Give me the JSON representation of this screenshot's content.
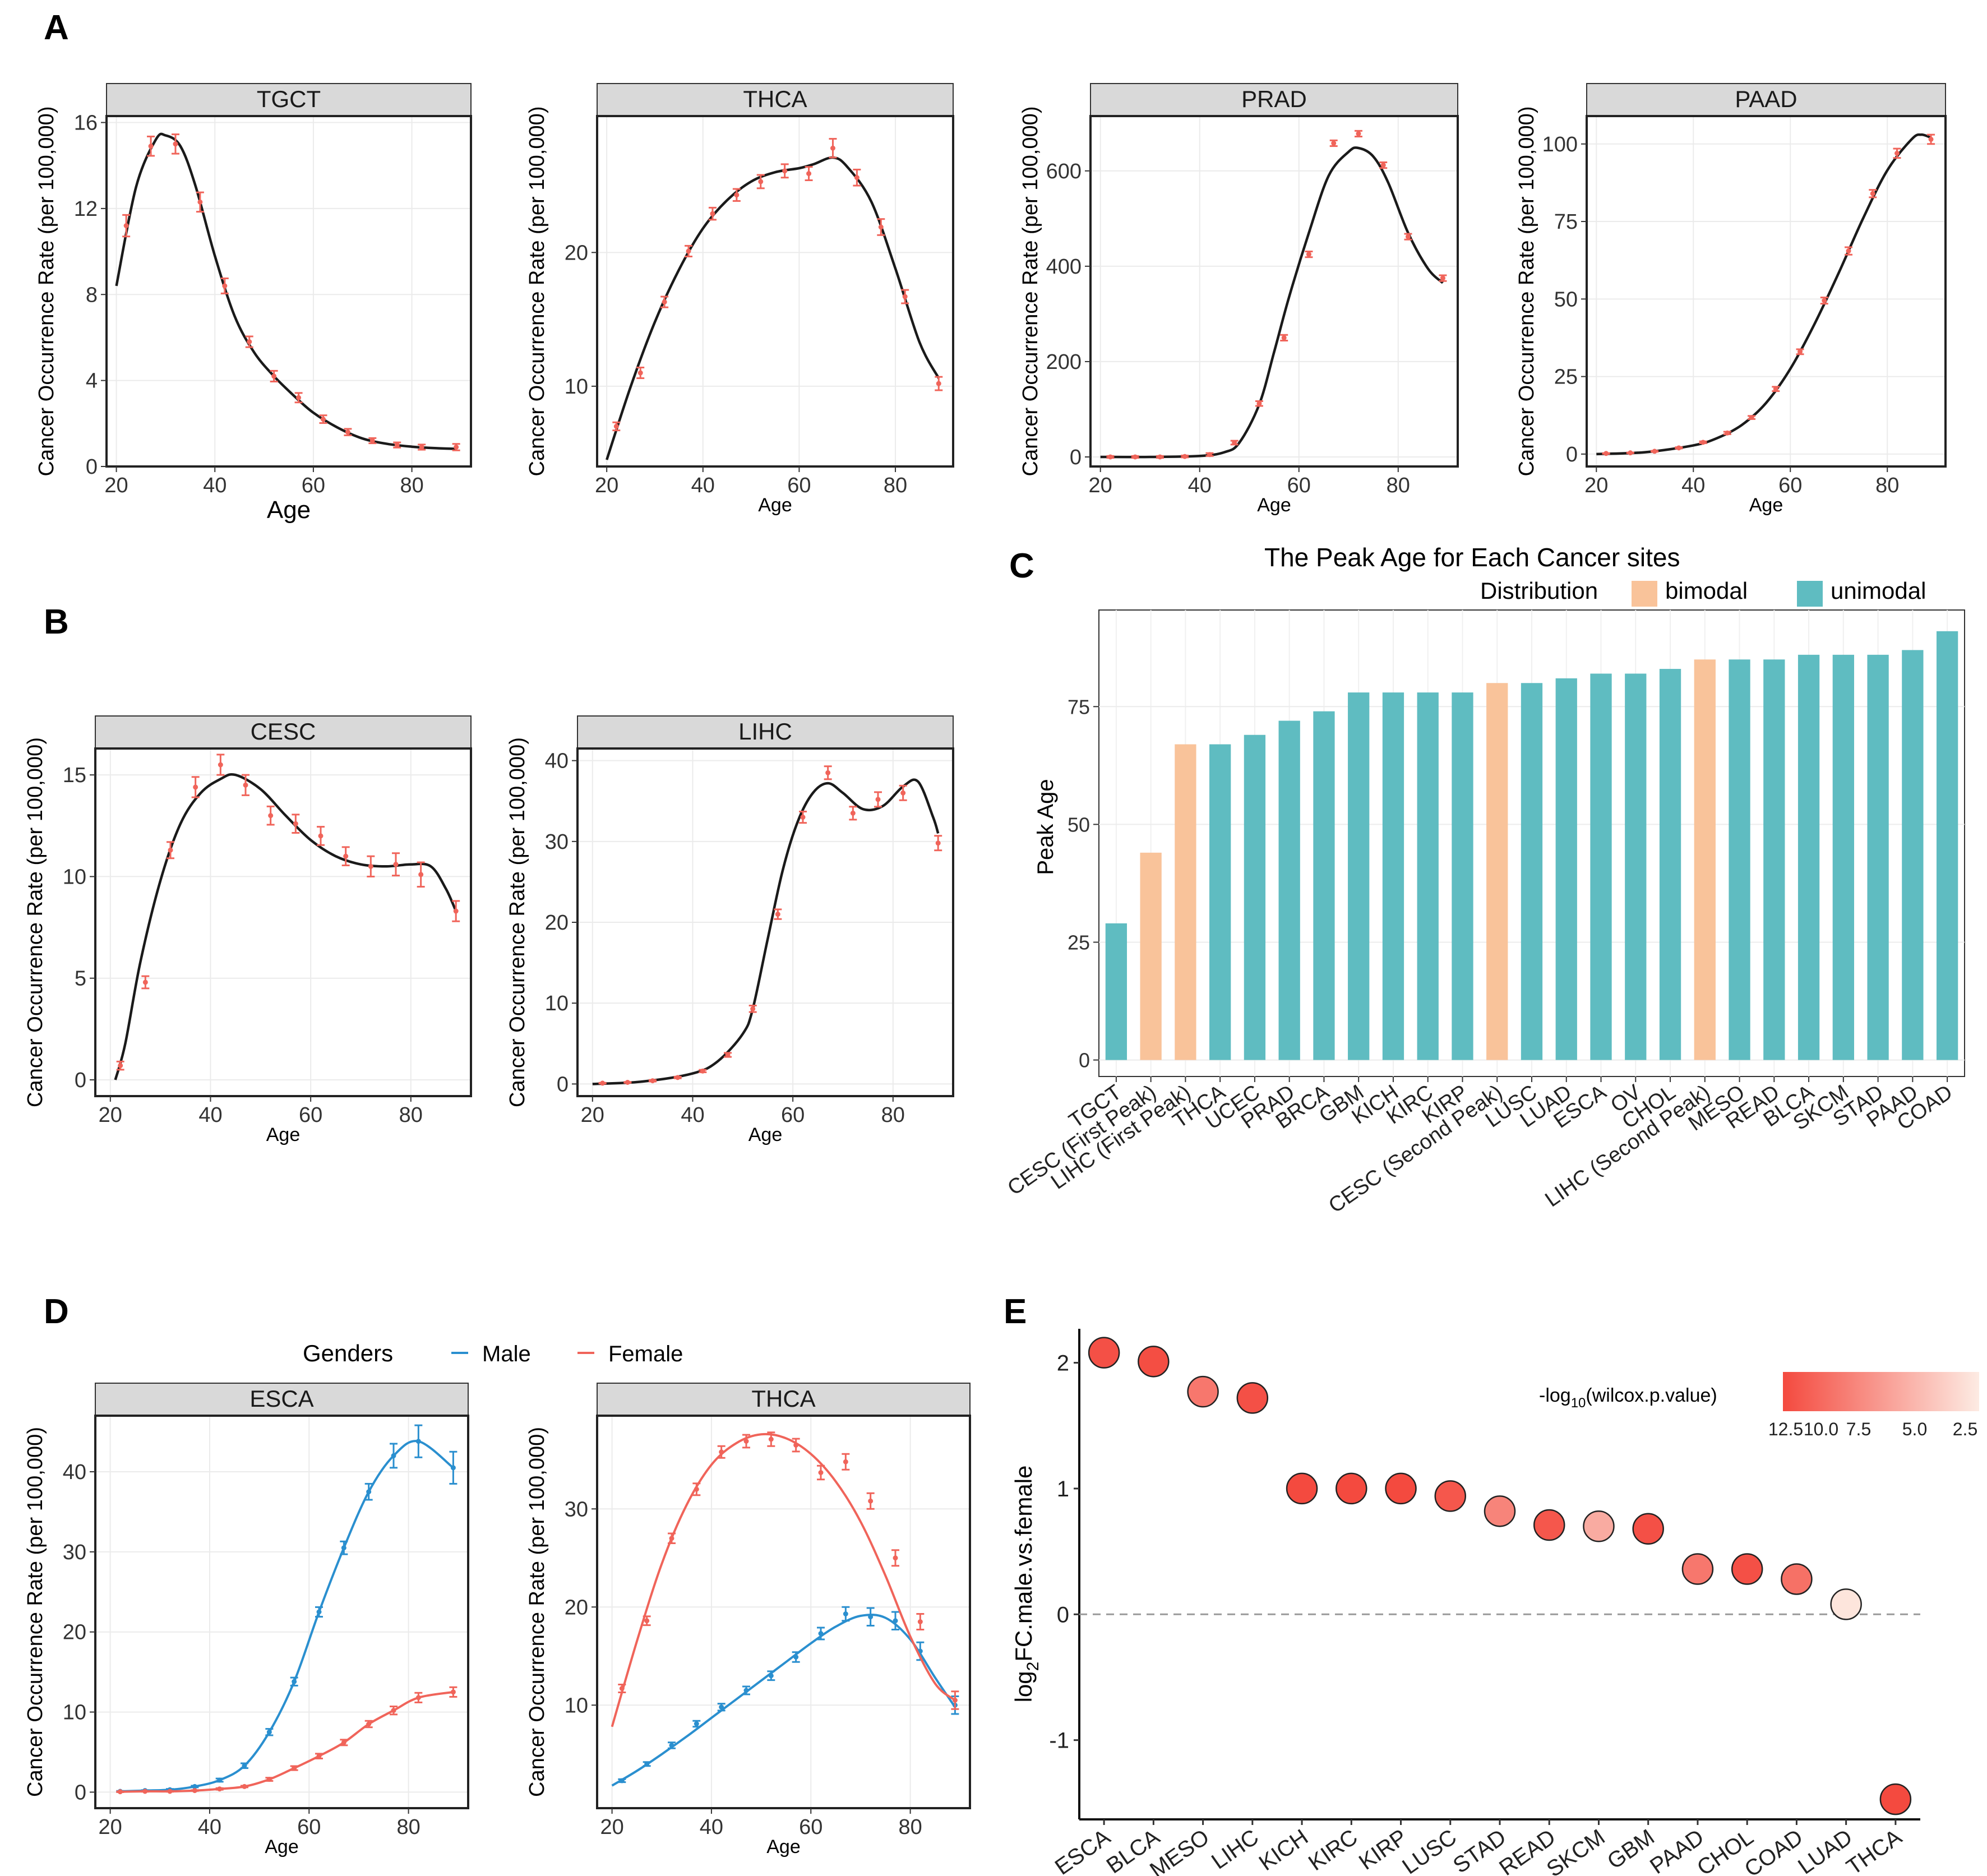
{
  "panel_letters": [
    "A",
    "B",
    "C",
    "D",
    "E"
  ],
  "facet_ylabel": "Cancer Occurrence Rate (per 100,000)",
  "age_label": "Age",
  "colors": {
    "point": "#f0645a",
    "curve": "#1a1a1a",
    "strip": "#d9d9d9",
    "male": "#2a8fcf",
    "female": "#f0645a",
    "bimodal": "#f9c39a",
    "unimodal": "#5fbcc1",
    "grid": "#ebebeb"
  },
  "chart_data": [
    {
      "id": "TGCT",
      "type": "scatter",
      "title": "TGCT",
      "xlabel": "Age",
      "ylabel": "Cancer Occurrence Rate (per 100,000)",
      "xlim": [
        18,
        92
      ],
      "ylim": [
        0,
        16.3
      ],
      "xticks": [
        20,
        40,
        60,
        80
      ],
      "yticks": [
        0,
        4,
        8,
        12,
        16
      ],
      "x": [
        22,
        27,
        32,
        37,
        42,
        47,
        52,
        57,
        62,
        67,
        72,
        77,
        82,
        89
      ],
      "values": [
        11.2,
        14.9,
        15.0,
        12.3,
        8.4,
        5.8,
        4.2,
        3.2,
        2.2,
        1.6,
        1.2,
        1.0,
        0.9,
        0.9
      ],
      "errors": [
        0.5,
        0.45,
        0.45,
        0.45,
        0.35,
        0.25,
        0.25,
        0.22,
        0.18,
        0.15,
        0.12,
        0.12,
        0.12,
        0.15
      ],
      "curve_x": [
        20,
        24,
        28,
        30,
        33,
        36,
        40,
        44,
        48,
        52,
        56,
        60,
        65,
        70,
        75,
        80,
        85,
        89
      ],
      "curve_y": [
        8.4,
        13.0,
        15.2,
        15.4,
        14.9,
        13.1,
        9.8,
        7.0,
        5.3,
        4.2,
        3.3,
        2.5,
        1.8,
        1.3,
        1.05,
        0.92,
        0.85,
        0.82
      ]
    },
    {
      "id": "THCA",
      "type": "scatter",
      "title": "THCA",
      "xlabel": "Age",
      "ylabel": "Cancer Occurrence Rate (per 100,000)",
      "xlim": [
        18,
        92
      ],
      "ylim": [
        4,
        30.2
      ],
      "xticks": [
        20,
        40,
        60,
        80
      ],
      "yticks": [
        10,
        20
      ],
      "x": [
        22,
        27,
        32,
        37,
        42,
        47,
        52,
        57,
        62,
        67,
        72,
        77,
        82,
        89
      ],
      "values": [
        7.0,
        11.0,
        16.3,
        20.1,
        22.9,
        24.3,
        25.3,
        26.1,
        25.9,
        27.8,
        25.6,
        21.9,
        16.7,
        10.2
      ],
      "errors": [
        0.3,
        0.4,
        0.4,
        0.4,
        0.45,
        0.45,
        0.5,
        0.5,
        0.5,
        0.7,
        0.6,
        0.6,
        0.5,
        0.5
      ],
      "curve_x": [
        20,
        25,
        30,
        35,
        40,
        45,
        50,
        55,
        60,
        63,
        67,
        70,
        75,
        80,
        85,
        89
      ],
      "curve_y": [
        4.5,
        10.0,
        14.8,
        18.7,
        21.8,
        23.9,
        25.3,
        26.0,
        26.3,
        26.6,
        27.1,
        26.4,
        23.8,
        18.8,
        13.3,
        10.6
      ]
    },
    {
      "id": "PRAD",
      "type": "scatter",
      "title": "PRAD",
      "xlabel": "Age",
      "ylabel": "Cancer Occurrence Rate (per 100,000)",
      "xlim": [
        18,
        92
      ],
      "ylim": [
        -20,
        715
      ],
      "xticks": [
        20,
        40,
        60,
        80
      ],
      "yticks": [
        0,
        200,
        400,
        600
      ],
      "x": [
        22,
        27,
        32,
        37,
        42,
        47,
        52,
        57,
        62,
        67,
        72,
        77,
        82,
        89
      ],
      "values": [
        0,
        0,
        0,
        1,
        5,
        30,
        112,
        250,
        425,
        658,
        678,
        612,
        462,
        375
      ],
      "errors": [
        2,
        2,
        2,
        2,
        3,
        4,
        5,
        6,
        6,
        6,
        6,
        6,
        6,
        6
      ],
      "curve_x": [
        20,
        30,
        40,
        45,
        48,
        52,
        55,
        58,
        62,
        66,
        70,
        72,
        75,
        78,
        82,
        86,
        89
      ],
      "curve_y": [
        0,
        0,
        2,
        10,
        30,
        110,
        220,
        335,
        470,
        590,
        640,
        648,
        630,
        575,
        470,
        395,
        365
      ]
    },
    {
      "id": "PAAD",
      "type": "scatter",
      "title": "PAAD",
      "xlabel": "Age",
      "ylabel": "Cancer Occurrence Rate (per 100,000)",
      "xlim": [
        18,
        92
      ],
      "ylim": [
        -4,
        109
      ],
      "xticks": [
        20,
        40,
        60,
        80
      ],
      "yticks": [
        0,
        25,
        50,
        75,
        100
      ],
      "x": [
        22,
        27,
        32,
        37,
        42,
        47,
        52,
        57,
        62,
        67,
        72,
        77,
        82,
        89
      ],
      "values": [
        0.2,
        0.4,
        0.9,
        2.0,
        3.8,
        6.8,
        11.8,
        21.0,
        33.0,
        49.5,
        65.5,
        84.0,
        97.0,
        101.5
      ],
      "errors": [
        0.1,
        0.1,
        0.15,
        0.2,
        0.3,
        0.4,
        0.5,
        0.7,
        0.8,
        1.0,
        1.2,
        1.2,
        1.5,
        1.5
      ],
      "curve_x": [
        20,
        30,
        40,
        45,
        50,
        55,
        60,
        65,
        70,
        75,
        80,
        85,
        87,
        89
      ],
      "curve_y": [
        0,
        0.6,
        2.8,
        5.2,
        9.4,
        16.5,
        27.5,
        42.0,
        58.5,
        76.0,
        91.5,
        101.5,
        103.0,
        102.0
      ]
    },
    {
      "id": "CESC",
      "type": "scatter",
      "title": "CESC",
      "xlabel": "Age",
      "ylabel": "Cancer Occurrence Rate (per 100,000)",
      "xlim": [
        17,
        92
      ],
      "ylim": [
        -0.8,
        16.3
      ],
      "xticks": [
        20,
        40,
        60,
        80
      ],
      "yticks": [
        0,
        5,
        10,
        15
      ],
      "x": [
        22,
        27,
        32,
        37,
        42,
        47,
        52,
        57,
        62,
        67,
        72,
        77,
        82,
        89
      ],
      "values": [
        0.7,
        4.8,
        11.3,
        14.4,
        15.5,
        14.5,
        13.0,
        12.6,
        12.0,
        11.0,
        10.5,
        10.6,
        10.1,
        8.3
      ],
      "errors": [
        0.2,
        0.3,
        0.4,
        0.5,
        0.5,
        0.5,
        0.45,
        0.45,
        0.45,
        0.45,
        0.5,
        0.55,
        0.6,
        0.5
      ],
      "curve_x": [
        21,
        23,
        26,
        30,
        34,
        38,
        42,
        45,
        50,
        55,
        60,
        65,
        70,
        75,
        80,
        84,
        87,
        89
      ],
      "curve_y": [
        0,
        1.8,
        5.8,
        9.8,
        12.6,
        14.1,
        14.8,
        15.0,
        14.3,
        13.0,
        11.8,
        11.0,
        10.6,
        10.5,
        10.6,
        10.5,
        9.4,
        8.3
      ]
    },
    {
      "id": "LIHC",
      "type": "scatter",
      "title": "LIHC",
      "xlabel": "Age",
      "ylabel": "Cancer Occurrence Rate (per 100,000)",
      "xlim": [
        17,
        92
      ],
      "ylim": [
        -1.5,
        41.5
      ],
      "xticks": [
        20,
        40,
        60,
        80
      ],
      "yticks": [
        0,
        10,
        20,
        30,
        40
      ],
      "x": [
        22,
        27,
        32,
        37,
        42,
        47,
        52,
        57,
        62,
        67,
        72,
        77,
        82,
        89
      ],
      "values": [
        0.1,
        0.2,
        0.4,
        0.8,
        1.6,
        3.6,
        9.3,
        21.0,
        33.0,
        38.5,
        33.5,
        35.2,
        36.0,
        29.8
      ],
      "errors": [
        0.05,
        0.05,
        0.1,
        0.1,
        0.15,
        0.25,
        0.4,
        0.6,
        0.7,
        0.8,
        0.8,
        0.9,
        0.9,
        0.9
      ],
      "curve_x": [
        20,
        30,
        40,
        45,
        50,
        52,
        55,
        58,
        61,
        64,
        67,
        70,
        74,
        78,
        82,
        85,
        88,
        89
      ],
      "curve_y": [
        0,
        0.3,
        1.3,
        2.8,
        6.2,
        9.3,
        18.0,
        26.5,
        32.5,
        36.0,
        37.2,
        36.0,
        34.0,
        34.4,
        36.8,
        37.4,
        33.0,
        31.0
      ]
    },
    {
      "id": "PEAK",
      "type": "bar",
      "title": "The Peak Age for Each Cancer sites",
      "xlabel": "",
      "ylabel": "Peak Age",
      "ylim": [
        -3.5,
        95.5
      ],
      "yticks": [
        0,
        25,
        50,
        75
      ],
      "legend_title": "Distribution",
      "legend": [
        "bimodal",
        "unimodal"
      ],
      "categories": [
        "TGCT",
        "CESC (First Peak)",
        "LIHC (First Peak)",
        "THCA",
        "UCEC",
        "PRAD",
        "BRCA",
        "GBM",
        "KICH",
        "KIRC",
        "KIRP",
        "CESC (Second Peak)",
        "LUSC",
        "LUAD",
        "ESCA",
        "OV",
        "CHOL",
        "LIHC (Second Peak)",
        "MESO",
        "READ",
        "BLCA",
        "SKCM",
        "STAD",
        "PAAD",
        "COAD"
      ],
      "values": [
        29,
        44,
        67,
        67,
        69,
        72,
        74,
        78,
        78,
        78,
        78,
        80,
        80,
        81,
        82,
        82,
        83,
        85,
        85,
        85,
        86,
        86,
        86,
        87,
        91
      ],
      "groups": [
        "unimodal",
        "bimodal",
        "bimodal",
        "unimodal",
        "unimodal",
        "unimodal",
        "unimodal",
        "unimodal",
        "unimodal",
        "unimodal",
        "unimodal",
        "bimodal",
        "unimodal",
        "unimodal",
        "unimodal",
        "unimodal",
        "unimodal",
        "bimodal",
        "unimodal",
        "unimodal",
        "unimodal",
        "unimodal",
        "unimodal",
        "unimodal",
        "unimodal"
      ]
    },
    {
      "id": "ESCA",
      "type": "line",
      "title": "ESCA",
      "xlabel": "Age",
      "ylabel": "Cancer Occurrence Rate (per 100,000)",
      "xlim": [
        17,
        92
      ],
      "ylim": [
        -2,
        47
      ],
      "xticks": [
        20,
        40,
        60,
        80
      ],
      "yticks": [
        0,
        10,
        20,
        30,
        40
      ],
      "legend_title": "Genders",
      "legend": [
        "Male",
        "Female"
      ],
      "x": [
        22,
        27,
        32,
        37,
        42,
        47,
        52,
        57,
        62,
        67,
        72,
        77,
        82,
        89
      ],
      "series": [
        {
          "name": "Male",
          "values": [
            0.1,
            0.2,
            0.3,
            0.7,
            1.5,
            3.3,
            7.5,
            13.8,
            22.5,
            30.5,
            37.5,
            42.0,
            43.8,
            40.5
          ],
          "errors": [
            0.05,
            0.05,
            0.1,
            0.1,
            0.2,
            0.3,
            0.4,
            0.5,
            0.6,
            0.8,
            1.0,
            1.5,
            2.0,
            2.0
          ]
        },
        {
          "name": "Female",
          "values": [
            0.05,
            0.1,
            0.1,
            0.2,
            0.4,
            0.7,
            1.6,
            3.0,
            4.5,
            6.2,
            8.5,
            10.2,
            11.8,
            12.5
          ],
          "errors": [
            0.05,
            0.05,
            0.05,
            0.05,
            0.1,
            0.1,
            0.2,
            0.25,
            0.3,
            0.35,
            0.4,
            0.5,
            0.6,
            0.6
          ]
        }
      ]
    },
    {
      "id": "THCA2",
      "type": "line",
      "title": "THCA",
      "xlabel": "Age",
      "ylabel": "Cancer Occurrence Rate (per 100,000)",
      "xlim": [
        17,
        92
      ],
      "ylim": [
        -0.5,
        39.5
      ],
      "xticks": [
        20,
        40,
        60,
        80
      ],
      "yticks": [
        10,
        20,
        30
      ],
      "x": [
        22,
        27,
        32,
        37,
        42,
        47,
        52,
        57,
        62,
        67,
        72,
        77,
        82,
        89
      ],
      "series": [
        {
          "name": "Male",
          "values": [
            2.3,
            4.0,
            5.9,
            8.1,
            9.8,
            11.5,
            13.0,
            14.9,
            17.3,
            19.3,
            19.0,
            18.6,
            15.5,
            10.0
          ],
          "errors": [
            0.15,
            0.2,
            0.3,
            0.3,
            0.35,
            0.4,
            0.45,
            0.5,
            0.6,
            0.7,
            0.9,
            0.9,
            0.9,
            0.9
          ]
        },
        {
          "name": "Female",
          "values": [
            11.7,
            18.6,
            27.0,
            32.0,
            35.8,
            36.9,
            37.1,
            36.5,
            33.7,
            34.8,
            30.8,
            25.0,
            18.5,
            10.5
          ],
          "errors": [
            0.4,
            0.45,
            0.5,
            0.6,
            0.6,
            0.65,
            0.7,
            0.65,
            0.7,
            0.8,
            0.8,
            0.8,
            0.8,
            0.9
          ]
        }
      ],
      "fit_x": [
        20,
        25,
        30,
        35,
        40,
        45,
        50,
        55,
        60,
        65,
        70,
        75,
        80,
        85,
        89
      ],
      "fit": {
        "Male": [
          1.8,
          3.3,
          5.0,
          6.8,
          8.7,
          10.6,
          12.5,
          14.4,
          16.3,
          18.0,
          19.1,
          18.9,
          16.7,
          12.8,
          9.8
        ],
        "Female": [
          7.8,
          16.5,
          24.4,
          30.4,
          34.5,
          36.7,
          37.6,
          37.2,
          35.6,
          32.8,
          28.7,
          23.2,
          17.0,
          12.2,
          10.5
        ]
      }
    },
    {
      "id": "FC",
      "type": "scatter",
      "title": "",
      "xlabel": "",
      "ylabel": "log2FC.male.vs.female",
      "ylim": [
        -1.63,
        2.27
      ],
      "yticks": [
        -1,
        0,
        1,
        2
      ],
      "categories": [
        "ESCA",
        "BLCA",
        "MESO",
        "LIHC",
        "KICH",
        "KIRC",
        "KIRP",
        "LUSC",
        "STAD",
        "READ",
        "SKCM",
        "GBM",
        "PAAD",
        "CHOL",
        "COAD",
        "LUAD",
        "THCA"
      ],
      "values": [
        2.08,
        2.01,
        1.77,
        1.72,
        1.0,
        1.0,
        1.0,
        0.94,
        0.82,
        0.71,
        0.7,
        0.68,
        0.36,
        0.36,
        0.28,
        0.08,
        -1.47
      ],
      "neglog10p": [
        13.0,
        13.2,
        10.0,
        13.0,
        13.5,
        13.5,
        13.5,
        12.5,
        9.0,
        12.5,
        6.0,
        13.0,
        10.0,
        13.0,
        10.5,
        1.5,
        13.5
      ],
      "legend_title": "-log10(wilcox.p.value)",
      "legend_ticks": [
        12.5,
        10.0,
        7.5,
        5.0,
        2.5
      ]
    }
  ],
  "facets": {
    "TGCT": {
      "ylabel_text": "Cancer Occurrence Rate (per 100,000)",
      "xlabel_text": "Age"
    },
    "THCA": {
      "ylabel_text": "Cancer Occurrence Rate (per 100,000)",
      "xlabel_text": "Age"
    },
    "PRAD": {
      "ylabel_text": "Cancer Occurrence Rate (per 100,000)",
      "xlabel_text": "Age"
    },
    "PAAD": {
      "ylabel_text": "Cancer Occurrence Rate (per 100,000)",
      "xlabel_text": "Age"
    },
    "CESC": {
      "ylabel_text": "Cancer Occurrence Rate (per 100,000)",
      "xlabel_text": "Age"
    },
    "LIHC": {
      "ylabel_text": "Cancer Occurrence Rate (per 100,000)",
      "xlabel_text": "Age"
    },
    "ESCA": {
      "ylabel_text": "Cancer Occurrence Rate (per 100,000)",
      "xlabel_text": "Age"
    },
    "THCA2": {
      "ylabel_text": "Cancer Occurrence Rate (per 100,000)",
      "xlabel_text": "Age"
    }
  },
  "panel_c": {
    "title": "The Peak Age for Each Cancer sites",
    "legend_title": "Distribution",
    "legend_items": [
      "bimodal",
      "unimodal"
    ],
    "ylabel": "Peak Age"
  },
  "panel_d": {
    "legend_title": "Genders",
    "legend_items": [
      "Male",
      "Female"
    ]
  },
  "panel_e": {
    "ylabel_main": "log",
    "ylabel_sub": "2",
    "ylabel_rest": "FC.male.vs.female",
    "legend_prefix": "-log",
    "legend_sub": "10",
    "legend_rest": "(wilcox.p.value)",
    "legend_ticks": [
      "12.5",
      "10.0",
      "7.5",
      "5.0",
      "2.5"
    ]
  }
}
